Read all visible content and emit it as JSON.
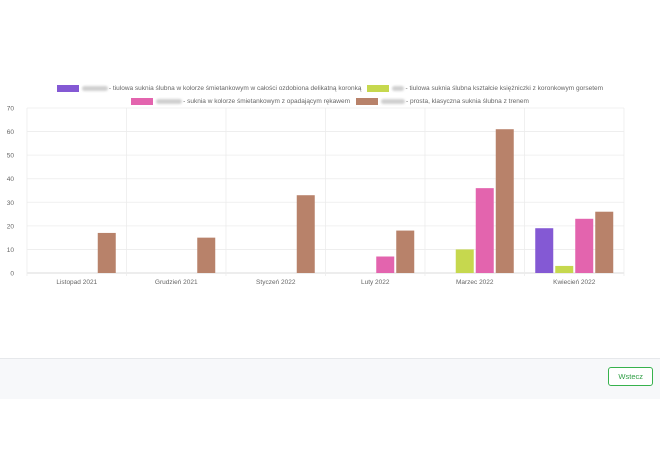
{
  "chart_data": {
    "type": "bar",
    "categories": [
      "Listopad 2021",
      "Grudzień 2021",
      "Styczeń 2022",
      "Luty 2022",
      "Marzec 2022",
      "Kwiecień 2022"
    ],
    "series": [
      {
        "name": "- tiulowa suknia ślubna w kolorze śmietankowym w całości ozdobiona delikatną koronką",
        "color": "#8459d4",
        "values": [
          0,
          0,
          0,
          0,
          0,
          19
        ]
      },
      {
        "name": "- tiulowa suknia ślubna kształcie księżniczki z koronkowym gorsetem",
        "color": "#c6d84e",
        "values": [
          0,
          0,
          0,
          0,
          10,
          3
        ]
      },
      {
        "name": "- suknia w kolorze śmietankowym z opadającym rękawem",
        "color": "#e364ae",
        "values": [
          0,
          0,
          0,
          7,
          36,
          23
        ]
      },
      {
        "name": "- prosta, klasyczna suknia ślubna  z trenem",
        "color": "#b8826a",
        "values": [
          17,
          15,
          33,
          18,
          61,
          26
        ]
      }
    ],
    "yticks": [
      0,
      10,
      20,
      30,
      40,
      50,
      60,
      70
    ],
    "ylim": [
      0,
      70
    ],
    "grid": true,
    "legend_position": "top"
  },
  "footer": {
    "back_label": "Wstecz"
  }
}
